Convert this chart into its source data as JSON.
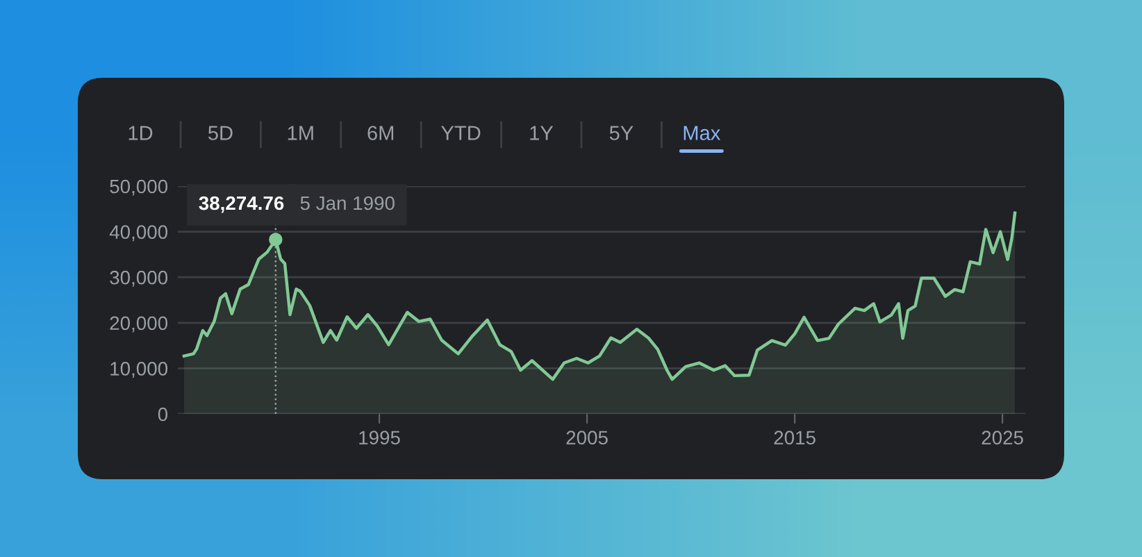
{
  "chart_data": {
    "type": "area",
    "x": [
      1985.6,
      1986.05,
      1986.2,
      1986.5,
      1986.7,
      1987.05,
      1987.35,
      1987.6,
      1987.9,
      1988.3,
      1988.7,
      1989.2,
      1989.6,
      1990.01,
      1990.25,
      1990.45,
      1990.7,
      1991.0,
      1991.2,
      1991.65,
      1992.3,
      1992.65,
      1992.95,
      1993.45,
      1993.9,
      1994.45,
      1994.9,
      1995.45,
      1996.35,
      1996.9,
      1997.45,
      1998.0,
      1998.8,
      1999.5,
      2000.2,
      2000.8,
      2001.35,
      2001.8,
      2002.35,
      2003.35,
      2003.9,
      2004.5,
      2005.05,
      2005.6,
      2006.15,
      2006.6,
      2007.4,
      2007.95,
      2008.4,
      2008.85,
      2009.1,
      2009.75,
      2010.4,
      2011.1,
      2011.65,
      2012.1,
      2012.8,
      2013.2,
      2013.9,
      2014.55,
      2015.0,
      2015.45,
      2016.1,
      2016.65,
      2017.1,
      2017.9,
      2018.35,
      2018.8,
      2019.1,
      2019.65,
      2020.0,
      2020.2,
      2020.45,
      2020.8,
      2021.1,
      2021.7,
      2022.25,
      2022.7,
      2023.1,
      2023.45,
      2023.9,
      2024.2,
      2024.55,
      2024.9,
      2025.25,
      2025.45,
      2025.6
    ],
    "series": [
      {
        "color": "#81c995",
        "values": [
          12700,
          13200,
          14200,
          18300,
          17200,
          20300,
          25400,
          26400,
          22000,
          27400,
          28400,
          34000,
          35500,
          38274.76,
          34000,
          33000,
          21800,
          27400,
          26900,
          23800,
          15700,
          18300,
          16200,
          21300,
          18800,
          21800,
          19300,
          15200,
          22300,
          20300,
          20800,
          16200,
          13200,
          17200,
          20600,
          15200,
          13700,
          9600,
          11700,
          7600,
          11200,
          12200,
          11200,
          12700,
          16700,
          15700,
          18600,
          16700,
          14200,
          9600,
          7600,
          10400,
          11200,
          9600,
          10600,
          8400,
          8500,
          14000,
          16100,
          15100,
          17600,
          21200,
          16100,
          16600,
          19700,
          23200,
          22700,
          24200,
          20200,
          21700,
          24200,
          16600,
          22700,
          23700,
          29800,
          29800,
          25800,
          27300,
          26800,
          33400,
          32900,
          40500,
          35400,
          40000,
          33900,
          38500,
          44100
        ]
      }
    ],
    "xlim": [
      1985.3,
      2026.1
    ],
    "xticks": [
      1995,
      2005,
      2015,
      2025
    ],
    "ylim": [
      0,
      50000
    ],
    "yticks": [
      0,
      {
        "value": 10000,
        "label": "10,000"
      },
      {
        "value": 20000,
        "label": "20,000"
      },
      {
        "value": 30000,
        "label": "30,000"
      },
      {
        "value": 40000,
        "label": "40,000"
      },
      {
        "value": 50000,
        "label": "50,000"
      }
    ],
    "grid": "y",
    "ref_lines": [
      {
        "axis": "x",
        "value": 1990.01,
        "label": "5 Jan 1990",
        "color": "#9aa0a6",
        "line_style": "dotted"
      }
    ],
    "annotations": [
      {
        "text": "38,274.76",
        "x": 1990.01,
        "y": 38274.76
      },
      "1D",
      "5D",
      "1M",
      "6M",
      "YTD",
      "1Y",
      "5Y",
      "Max"
    ]
  }
}
